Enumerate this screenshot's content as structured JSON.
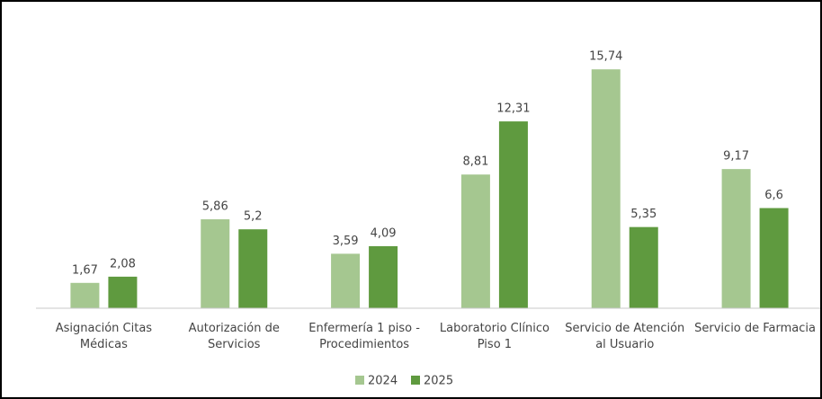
{
  "chart_data": {
    "type": "bar",
    "categories": [
      "Asignación Citas Médicas",
      "Autorización de Servicios",
      "Enfermería 1 piso - Procedimientos",
      "Laboratorio Clínico Piso 1",
      "Servicio de Atención al Usuario",
      "Servicio de Farmacia"
    ],
    "series": [
      {
        "name": "2024",
        "color": "#a5c790",
        "values": [
          1.67,
          5.86,
          3.59,
          8.81,
          15.74,
          9.17
        ],
        "value_labels": [
          "1,67",
          "5,86",
          "3,59",
          "8,81",
          "15,74",
          "9,17"
        ]
      },
      {
        "name": "2025",
        "color": "#5f9a3f",
        "values": [
          2.08,
          5.2,
          4.09,
          12.31,
          5.35,
          6.6
        ],
        "value_labels": [
          "2,08",
          "5,2",
          "4,09",
          "12,31",
          "5,35",
          "6,6"
        ]
      }
    ],
    "ylim": [
      0,
      18
    ],
    "legend": "bottom"
  }
}
